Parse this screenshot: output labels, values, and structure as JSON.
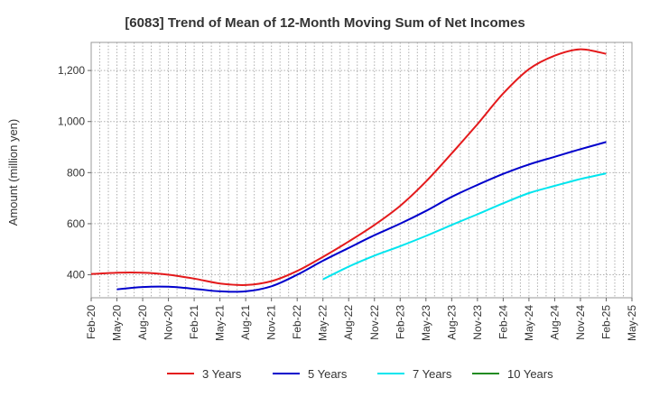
{
  "chart_data": {
    "type": "line",
    "title": "[6083]  Trend of Mean of 12-Month Moving Sum of Net Incomes",
    "ylabel": "Amount (million yen)",
    "xlabel": "",
    "ylim": [
      310,
      1310
    ],
    "yticks": [
      400,
      600,
      800,
      1000,
      1200
    ],
    "ytick_labels": [
      "400",
      "600",
      "800",
      "1,000",
      "1,200"
    ],
    "xlim": [
      "2020-02",
      "2025-05"
    ],
    "xticks": [
      "2020-02",
      "2020-05",
      "2020-08",
      "2020-11",
      "2021-02",
      "2021-05",
      "2021-08",
      "2021-11",
      "2022-02",
      "2022-05",
      "2022-08",
      "2022-11",
      "2023-02",
      "2023-05",
      "2023-08",
      "2023-11",
      "2024-02",
      "2024-05",
      "2024-08",
      "2024-11",
      "2025-02",
      "2025-05"
    ],
    "xtick_labels": [
      "Feb-20",
      "May-20",
      "Aug-20",
      "Nov-20",
      "Feb-21",
      "May-21",
      "Aug-21",
      "Nov-21",
      "Feb-22",
      "May-22",
      "Aug-22",
      "Nov-22",
      "Feb-23",
      "May-23",
      "Aug-23",
      "Nov-23",
      "Feb-24",
      "May-24",
      "Aug-24",
      "Nov-24",
      "Feb-25",
      "May-25"
    ],
    "grid": true,
    "legend_position": "bottom",
    "series": [
      {
        "name": "3 Years",
        "color": "#e41a1c",
        "points": [
          [
            "2020-02",
            403
          ],
          [
            "2020-05",
            408
          ],
          [
            "2020-08",
            408
          ],
          [
            "2020-11",
            400
          ],
          [
            "2021-02",
            385
          ],
          [
            "2021-05",
            366
          ],
          [
            "2021-08",
            360
          ],
          [
            "2021-11",
            375
          ],
          [
            "2022-02",
            415
          ],
          [
            "2022-05",
            470
          ],
          [
            "2022-08",
            530
          ],
          [
            "2022-11",
            595
          ],
          [
            "2023-02",
            670
          ],
          [
            "2023-05",
            765
          ],
          [
            "2023-08",
            875
          ],
          [
            "2023-11",
            990
          ],
          [
            "2024-02",
            1110
          ],
          [
            "2024-05",
            1205
          ],
          [
            "2024-08",
            1258
          ],
          [
            "2024-11",
            1283
          ],
          [
            "2025-02",
            1265
          ]
        ]
      },
      {
        "name": "5 Years",
        "color": "#0000cc",
        "points": [
          [
            "2020-05",
            343
          ],
          [
            "2020-08",
            352
          ],
          [
            "2020-11",
            353
          ],
          [
            "2021-02",
            345
          ],
          [
            "2021-05",
            335
          ],
          [
            "2021-08",
            335
          ],
          [
            "2021-11",
            355
          ],
          [
            "2022-02",
            400
          ],
          [
            "2022-05",
            455
          ],
          [
            "2022-08",
            505
          ],
          [
            "2022-11",
            555
          ],
          [
            "2023-02",
            600
          ],
          [
            "2023-05",
            650
          ],
          [
            "2023-08",
            705
          ],
          [
            "2023-11",
            752
          ],
          [
            "2024-02",
            795
          ],
          [
            "2024-05",
            832
          ],
          [
            "2024-08",
            862
          ],
          [
            "2024-11",
            892
          ],
          [
            "2025-02",
            920
          ]
        ]
      },
      {
        "name": "7 Years",
        "color": "#00e5ee",
        "points": [
          [
            "2022-05",
            382
          ],
          [
            "2022-08",
            432
          ],
          [
            "2022-11",
            475
          ],
          [
            "2023-02",
            512
          ],
          [
            "2023-05",
            552
          ],
          [
            "2023-08",
            595
          ],
          [
            "2023-11",
            637
          ],
          [
            "2024-02",
            680
          ],
          [
            "2024-05",
            720
          ],
          [
            "2024-08",
            748
          ],
          [
            "2024-11",
            775
          ],
          [
            "2025-02",
            797
          ]
        ]
      },
      {
        "name": "10 Years",
        "color": "#228b22",
        "points": []
      }
    ]
  }
}
